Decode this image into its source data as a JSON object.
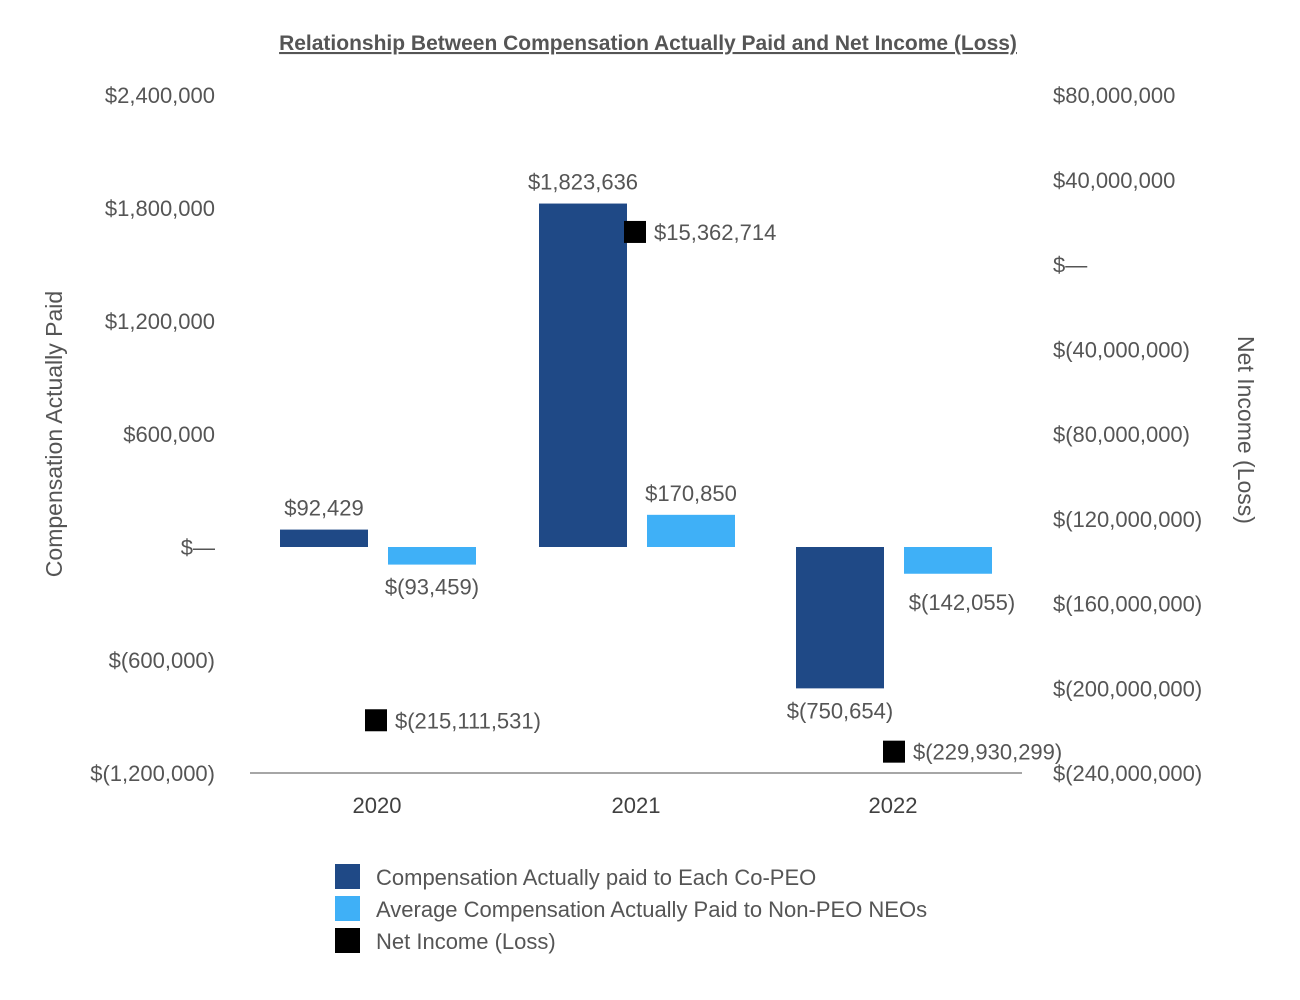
{
  "chart_data": {
    "type": "bar",
    "title": "Relationship Between Compensation Actually Paid and Net Income (Loss)",
    "categories": [
      "2020",
      "2021",
      "2022"
    ],
    "ylabel": "Compensation Actually Paid",
    "y2label": "Net Income (Loss)",
    "ylim": [
      -1200000,
      2400000
    ],
    "y2lim": [
      -240000000,
      80000000
    ],
    "yticks": [
      {
        "value": 2400000,
        "label": "$2,400,000"
      },
      {
        "value": 1800000,
        "label": "$1,800,000"
      },
      {
        "value": 1200000,
        "label": "$1,200,000"
      },
      {
        "value": 600000,
        "label": "$600,000"
      },
      {
        "value": 0,
        "label": "$—"
      },
      {
        "value": -600000,
        "label": "$(600,000)"
      },
      {
        "value": -1200000,
        "label": "$(1,200,000)"
      }
    ],
    "y2ticks": [
      {
        "value": 80000000,
        "label": "$80,000,000"
      },
      {
        "value": 40000000,
        "label": "$40,000,000"
      },
      {
        "value": 0,
        "label": "$—"
      },
      {
        "value": -40000000,
        "label": "$(40,000,000)"
      },
      {
        "value": -80000000,
        "label": "$(80,000,000)"
      },
      {
        "value": -120000000,
        "label": "$(120,000,000)"
      },
      {
        "value": -160000000,
        "label": "$(160,000,000)"
      },
      {
        "value": -200000000,
        "label": "$(200,000,000)"
      },
      {
        "value": -240000000,
        "label": "$(240,000,000)"
      }
    ],
    "series": [
      {
        "name": "Compensation Actually paid to Each Co-PEO",
        "kind": "bar",
        "axis": "left",
        "color": "#1f4986",
        "values": [
          92429,
          1823636,
          -750654
        ],
        "labels": [
          "$92,429",
          "$1,823,636",
          "$(750,654)"
        ]
      },
      {
        "name": "Average Compensation Actually Paid to Non-PEO NEOs",
        "kind": "bar",
        "axis": "left",
        "color": "#3fb0f7",
        "values": [
          -93459,
          170850,
          -142055
        ],
        "labels": [
          "$(93,459)",
          "$170,850",
          "$(142,055)"
        ]
      },
      {
        "name": "Net Income (Loss)",
        "kind": "marker",
        "axis": "right",
        "color": "#000000",
        "values": [
          -215111531,
          15362714,
          -229930299
        ],
        "labels": [
          "$(215,111,531)",
          "$15,362,714",
          "$(229,930,299)"
        ]
      }
    ],
    "grid": false,
    "legend_position": "bottom"
  }
}
